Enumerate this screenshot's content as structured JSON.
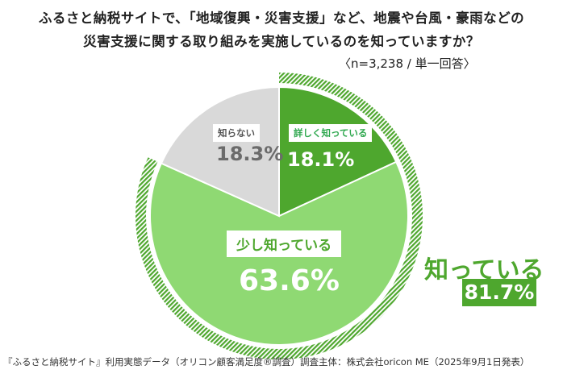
{
  "title_lines": [
    "ふるさと納税サイトで、「地域復興・災害支援」など、地震や台風・豪雨などの",
    "災害支援に関する取り組みを実施しているのを知っていますか？"
  ],
  "sample_note": "〈n=3,238 / 単一回答〉",
  "footer": "『ふるさと納税サイト』利用実態データ（オリコン顧客満足度®調査）調査主体：株式会社oricon ME（2025年9月1日発表）",
  "chart_data": {
    "type": "pie",
    "title": "ふるさと納税サイトで、「地域復興・災害支援」など、地震や台風・豪雨などの災害支援に関する取り組みを実施しているのを知っていますか？",
    "slices": [
      {
        "label": "詳しく知っている",
        "value": 18.1,
        "display": "18.1%",
        "color": "#4ea72e"
      },
      {
        "label": "少し知っている",
        "value": 63.6,
        "display": "63.6%",
        "color": "#8fd973"
      },
      {
        "label": "知らない",
        "value": 18.3,
        "display": "18.3%",
        "color": "#d9d9d9"
      }
    ],
    "summary": {
      "label": "知っている",
      "value": 81.7,
      "display": "81.7%",
      "color": "#4ea72e"
    }
  }
}
